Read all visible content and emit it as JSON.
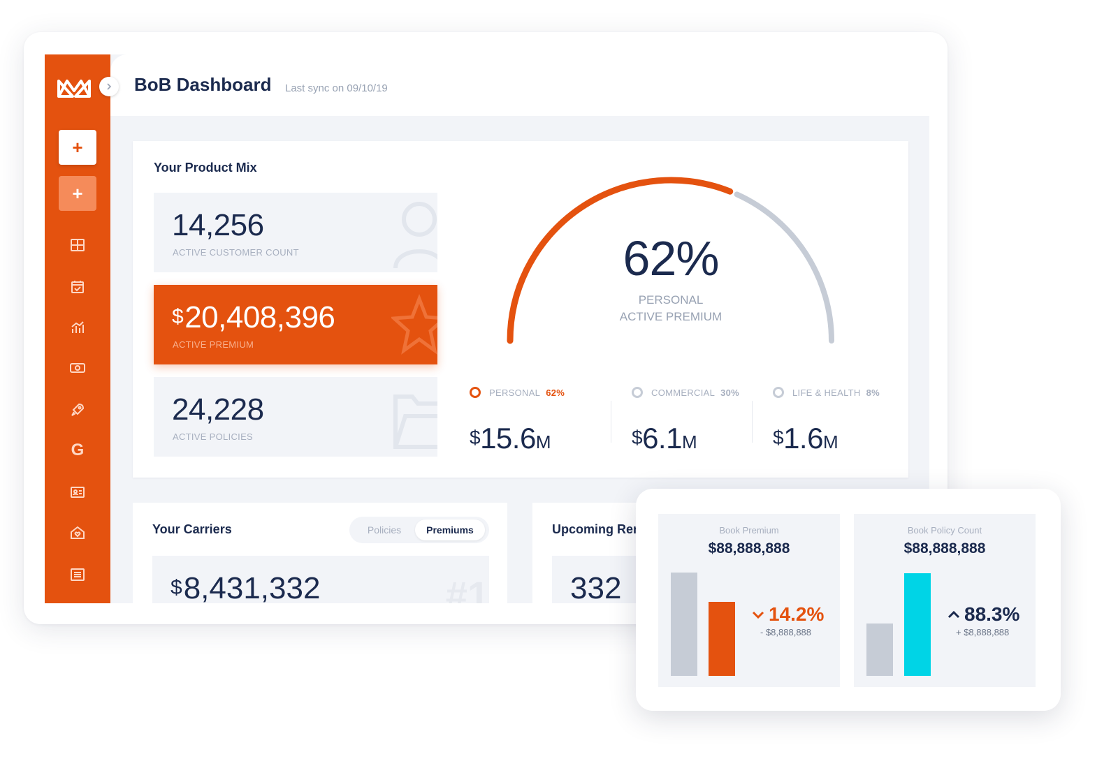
{
  "header": {
    "title": "BoB Dashboard",
    "sync": "Last sync on 09/10/19"
  },
  "sidebar": {
    "add_label": "+",
    "add_secondary_label": "+",
    "icons": [
      "grid-icon",
      "calendar-check-icon",
      "analytics-chart-icon",
      "cash-icon",
      "rocket-icon",
      "g-icon",
      "id-card-icon",
      "home-heart-icon",
      "list-icon"
    ],
    "g_letter": "G"
  },
  "product_mix": {
    "title": "Your Product Mix",
    "stats": [
      {
        "value": "14,256",
        "label": "ACTIVE CUSTOMER COUNT",
        "icon": "user-icon"
      },
      {
        "currency": "$",
        "value": "20,408,396",
        "label": "ACTIVE PREMIUM",
        "icon": "star-icon"
      },
      {
        "value": "24,228",
        "label": "ACTIVE POLICIES",
        "icon": "folder-icon"
      }
    ],
    "gauge": {
      "value": "62%",
      "label_line1": "PERSONAL",
      "label_line2": "ACTIVE PREMIUM",
      "fraction": 0.62
    },
    "breakdown": [
      {
        "name": "PERSONAL",
        "pct": "62%",
        "currency": "$",
        "amount": "15.6",
        "unit": "M"
      },
      {
        "name": "COMMERCIAL",
        "pct": "30%",
        "currency": "$",
        "amount": "6.1",
        "unit": "M"
      },
      {
        "name": "LIFE & HEALTH",
        "pct": "8%",
        "currency": "$",
        "amount": "1.6",
        "unit": "M"
      }
    ]
  },
  "carriers": {
    "title": "Your Carriers",
    "toggle_off": "Policies",
    "toggle_on": "Premiums",
    "currency": "$",
    "value": "8,431,332",
    "rank": "#1"
  },
  "renewals": {
    "title": "Upcoming Ren",
    "value": "332"
  },
  "comparison": {
    "panels": [
      {
        "title": "Book Premium",
        "value": "$88,888,888",
        "change": "14.2%",
        "direction": "down",
        "sub": "- $8,888,888",
        "bars": [
          0.95,
          0.68
        ],
        "colors": [
          "#c6ccd6",
          "#e4520f"
        ]
      },
      {
        "title": "Book Policy Count",
        "value": "$88,888,888",
        "change": "88.3%",
        "direction": "up",
        "sub": "+ $8,888,888",
        "bars": [
          0.48,
          0.94
        ],
        "colors": [
          "#c6ccd6",
          "#00d4e6"
        ]
      }
    ]
  },
  "colors": {
    "accent": "#e4520f",
    "navy": "#1b2a4e",
    "cyan": "#00d4e6",
    "gray": "#c6ccd6"
  }
}
